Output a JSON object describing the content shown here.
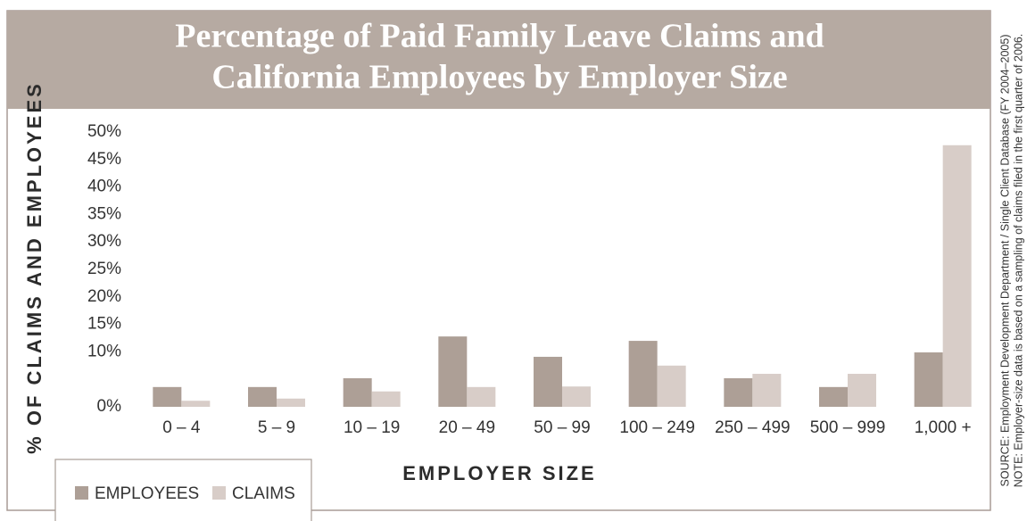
{
  "chart_data": {
    "type": "bar",
    "title": [
      "Percentage of Paid Family Leave Claims and",
      "California Employees by Employer Size"
    ],
    "x_label": "EMPLOYER SIZE",
    "y_label": "% OF CLAIMS AND EMPLOYEES",
    "categories": [
      "0 – 4",
      "5 – 9",
      "10 – 19",
      "20 – 49",
      "50 – 99",
      "100 – 249",
      "250 – 499",
      "500 – 999",
      "1,000 +"
    ],
    "series": [
      {
        "name": "EMPLOYEES",
        "color": "#ad9f96",
        "values": [
          3.6,
          3.6,
          5.2,
          12.8,
          9.1,
          12.0,
          5.2,
          3.6,
          9.9
        ]
      },
      {
        "name": "CLAIMS",
        "color": "#d8cdc8",
        "values": [
          1.1,
          1.5,
          2.8,
          3.6,
          3.7,
          7.5,
          6.0,
          6.0,
          47.6
        ]
      }
    ],
    "ylim": [
      0,
      50
    ],
    "yticks": [
      {
        "value": 0,
        "label": "0%"
      },
      {
        "value": 10,
        "label": "10%"
      },
      {
        "value": 15,
        "label": "15%"
      },
      {
        "value": 20,
        "label": "20%"
      },
      {
        "value": 25,
        "label": "25%"
      },
      {
        "value": 30,
        "label": "30%"
      },
      {
        "value": 35,
        "label": "35%"
      },
      {
        "value": 40,
        "label": "40%"
      },
      {
        "value": 45,
        "label": "45%"
      },
      {
        "value": 50,
        "label": "50%"
      }
    ],
    "grid": false,
    "source": "SOURCE: Employment Development Department / Single Client Database (FY 2004–2005)",
    "note": "NOTE: Employer-size data is based on a sampling of claims filed in the first quarter of 2006."
  }
}
